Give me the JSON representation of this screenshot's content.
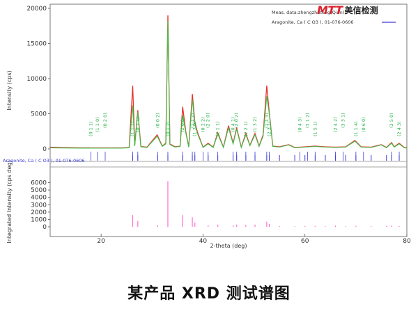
{
  "logo": {
    "mark": "MTT",
    "text": "美信检测"
  },
  "caption": "某产品 XRD 测试谱图",
  "colors": {
    "measured": "#e8332e",
    "fit": "#3fc24a",
    "reference": "#3a3ad6",
    "integrated": "#ff6fcf",
    "label": "#29b34a"
  },
  "chart_data": [
    {
      "type": "line",
      "panel": "main",
      "xlabel": "2-theta (deg)",
      "ylabel": "Intensity (cps)",
      "xlim": [
        10,
        80
      ],
      "ylim": [
        0,
        20000
      ],
      "xticks": [
        20,
        40,
        60,
        80
      ],
      "yticks": [
        0,
        5000,
        10000,
        15000,
        20000
      ],
      "legend": {
        "placement": "top-right",
        "entries": [
          "Meas. data:zhengzhuteng(Qian)1",
          "Aragonite, Ca ( C O3 ), 01-076-0606"
        ]
      },
      "series": [
        {
          "name": "Meas. data:zhengzhuteng(Qian)1",
          "x": [
            10,
            12,
            14,
            16,
            18,
            20,
            22,
            24,
            25.5,
            26.2,
            26.6,
            27.2,
            27.8,
            29,
            31,
            32.0,
            32.7,
            33.1,
            33.5,
            34.5,
            35.5,
            36.0,
            36.6,
            37.2,
            37.9,
            38.4,
            38.9,
            40,
            41.0,
            42,
            42.9,
            44,
            45.0,
            45.9,
            46.6,
            47.5,
            48.4,
            49.2,
            50.2,
            51.0,
            51.8,
            52.5,
            53.0,
            53.7,
            55,
            56.8,
            58,
            60,
            62,
            64,
            66,
            68,
            69.8,
            71,
            73,
            75,
            76.0,
            77,
            77.5,
            78.5,
            79.5,
            80
          ],
          "y": [
            250,
            200,
            170,
            150,
            140,
            130,
            130,
            140,
            200,
            9000,
            500,
            5500,
            350,
            250,
            2000,
            400,
            800,
            19000,
            700,
            300,
            400,
            6000,
            2500,
            300,
            7800,
            3800,
            2400,
            250,
            800,
            250,
            2300,
            250,
            3300,
            800,
            3000,
            250,
            2200,
            500,
            2200,
            400,
            2000,
            9000,
            5200,
            400,
            300,
            600,
            200,
            300,
            400,
            300,
            250,
            300,
            1200,
            300,
            250,
            600,
            200,
            900,
            300,
            800,
            200,
            150
          ]
        },
        {
          "name": "fit",
          "x": [
            10,
            12,
            14,
            16,
            18,
            20,
            22,
            24,
            25.5,
            26.2,
            26.6,
            27.2,
            27.8,
            29,
            31,
            32.0,
            32.7,
            33.1,
            33.5,
            34.5,
            35.5,
            36.0,
            36.6,
            37.2,
            37.9,
            38.4,
            38.9,
            40,
            41.0,
            42,
            42.9,
            44,
            45.0,
            45.9,
            46.6,
            47.5,
            48.4,
            49.2,
            50.2,
            51.0,
            51.8,
            52.5,
            53.0,
            53.7,
            55,
            56.8,
            58,
            60,
            62,
            64,
            66,
            68,
            69.8,
            71,
            73,
            75,
            76.0,
            77,
            77.5,
            78.5,
            79.5,
            80
          ],
          "y": [
            150,
            130,
            120,
            110,
            100,
            100,
            100,
            110,
            150,
            6200,
            400,
            5200,
            300,
            200,
            1800,
            350,
            700,
            18200,
            600,
            250,
            350,
            4800,
            2300,
            250,
            7000,
            3500,
            2200,
            200,
            700,
            200,
            2100,
            200,
            3000,
            700,
            2800,
            200,
            2000,
            450,
            2000,
            350,
            1800,
            7500,
            5000,
            350,
            250,
            550,
            150,
            250,
            350,
            250,
            200,
            250,
            1100,
            250,
            200,
            550,
            150,
            800,
            250,
            700,
            150,
            100
          ]
        }
      ],
      "annotations": [
        {
          "x": 18.0,
          "label": "(0 1 1)"
        },
        {
          "x": 19.3,
          "label": "(1 1 0)"
        },
        {
          "x": 20.8,
          "label": "(0 2 0)"
        },
        {
          "x": 26.2,
          "label": "(1 1 1)"
        },
        {
          "x": 27.2,
          "label": "(0 2 1)"
        },
        {
          "x": 31.1,
          "label": "(0 0 2)"
        },
        {
          "x": 33.1,
          "label": "(0 1 2)"
        },
        {
          "x": 36.0,
          "label": "(2 0 0)"
        },
        {
          "x": 37.9,
          "label": "(1 1 2)"
        },
        {
          "x": 38.4,
          "label": "(1 3 0)"
        },
        {
          "x": 40.0,
          "label": "(0 2 2)"
        },
        {
          "x": 41.0,
          "label": "(2 2 0)"
        },
        {
          "x": 42.9,
          "label": "(2 1 1)"
        },
        {
          "x": 45.9,
          "label": "(0 4 1)"
        },
        {
          "x": 46.6,
          "label": "(2 0 2)"
        },
        {
          "x": 48.4,
          "label": "(2 2 1)"
        },
        {
          "x": 50.2,
          "label": "(1 3 2)"
        },
        {
          "x": 52.5,
          "label": "(1 1 3)"
        },
        {
          "x": 53.0,
          "label": "(2 3 1)"
        },
        {
          "x": 59.0,
          "label": "(0 4 3)"
        },
        {
          "x": 60.5,
          "label": "(3 1 2)"
        },
        {
          "x": 62.0,
          "label": "(1 5 1)"
        },
        {
          "x": 66.0,
          "label": "(2 4 2)"
        },
        {
          "x": 67.5,
          "label": "(3 3 1)"
        },
        {
          "x": 70.0,
          "label": "(1 1 4)"
        },
        {
          "x": 71.5,
          "label": "(0 6 0)"
        },
        {
          "x": 77.0,
          "label": "(3 5 0)"
        },
        {
          "x": 78.5,
          "label": "(2 4 3)"
        }
      ]
    },
    {
      "type": "bar",
      "panel": "reference",
      "xlabel": "2-theta (deg)",
      "ylabel": "Integrated Intensity (cps deg)",
      "xlim": [
        10,
        80
      ],
      "ylim": [
        0,
        7000
      ],
      "yticks": [
        0,
        1000,
        2000,
        3000,
        4000,
        5000,
        6000
      ],
      "label": "Aragonite, Ca ( C O3 ), 01-076-0606",
      "series": [
        {
          "name": "Aragonite, Ca ( C O3 ), 01-076-0606",
          "x": [
            26.2,
            27.2,
            31.1,
            33.1,
            36.0,
            37.9,
            38.4,
            41.0,
            42.9,
            45.9,
            46.6,
            48.4,
            50.2,
            52.5,
            53.0,
            55.0,
            58.0,
            60.0,
            62.0,
            64.0,
            66.0,
            68.0,
            70.0,
            73.0,
            76.0,
            77.0,
            78.5
          ],
          "values": [
            1600,
            800,
            200,
            6200,
            1600,
            1300,
            600,
            200,
            300,
            200,
            300,
            250,
            300,
            700,
            400,
            100,
            80,
            100,
            120,
            80,
            150,
            80,
            150,
            80,
            120,
            180,
            100
          ]
        }
      ]
    }
  ]
}
